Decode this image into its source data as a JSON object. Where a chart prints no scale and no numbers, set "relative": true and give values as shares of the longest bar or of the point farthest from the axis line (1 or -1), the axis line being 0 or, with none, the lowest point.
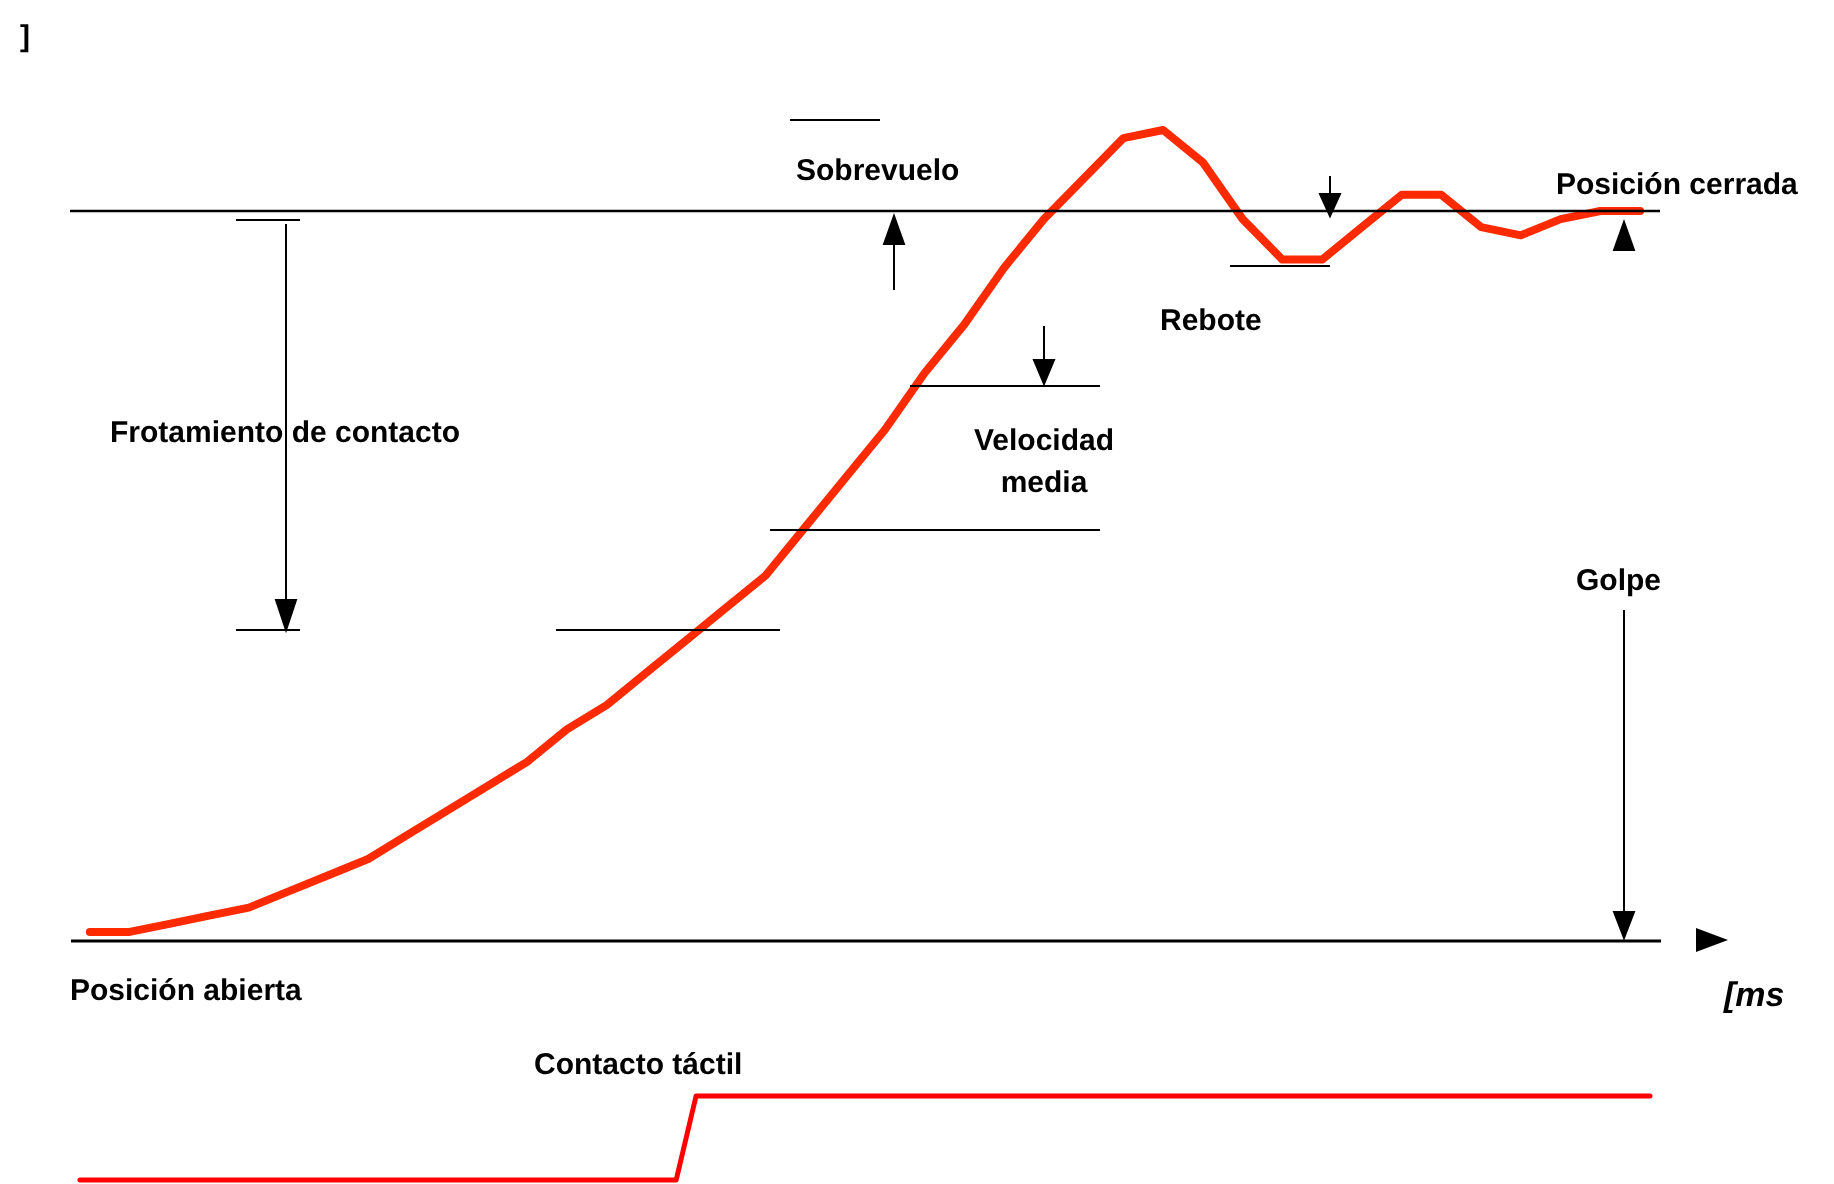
{
  "chart_data": [
    {
      "type": "line",
      "relative": true,
      "xlabel": "[ms",
      "ylabel": "]",
      "categories": [
        null,
        null,
        null,
        null,
        null,
        null,
        null,
        null,
        null,
        null,
        null,
        null,
        null,
        null,
        null,
        null,
        null,
        null,
        null,
        null,
        null,
        null,
        null,
        null,
        null,
        null,
        null,
        null,
        null,
        null,
        null,
        null,
        null,
        null,
        null,
        null,
        null,
        null,
        null,
        null
      ],
      "series": [
        {
          "color": "#ff2a00",
          "values": [
            0.01,
            0.01,
            0.02,
            0.03,
            0.04,
            0.06,
            0.08,
            0.1,
            0.13,
            0.16,
            0.19,
            0.22,
            0.26,
            0.29,
            0.33,
            0.37,
            0.41,
            0.45,
            0.51,
            0.57,
            0.63,
            0.7,
            0.76,
            0.83,
            0.89,
            0.94,
            0.99,
            1,
            0.96,
            0.89,
            0.84,
            0.84,
            0.88,
            0.92,
            0.92,
            0.88,
            0.87,
            0.89,
            0.9,
            0.9
          ]
        }
      ],
      "ref_lines": [
        {
          "axis": "y",
          "value": 0.9,
          "label": "Posición cerrada"
        }
      ],
      "annotations": [
        "Sobrevuelo",
        "Rebote",
        "Velocidad media",
        "Frotamiento de contacto",
        "Golpe",
        "Posición abierta"
      ]
    },
    {
      "type": "line",
      "relative": true,
      "categories": [
        null,
        null,
        null,
        null,
        null,
        null,
        null,
        null,
        null,
        null,
        null,
        null,
        null,
        null,
        null,
        null,
        null,
        null,
        null,
        null,
        null,
        null,
        null,
        null,
        null,
        null,
        null,
        null,
        null,
        null,
        null,
        null,
        null,
        null,
        null,
        null,
        null,
        null,
        null,
        null,
        null,
        null,
        null,
        null,
        null,
        null,
        null,
        null,
        null,
        null,
        null,
        null,
        null,
        null,
        null,
        null,
        null,
        null,
        null,
        null,
        null,
        null,
        null,
        null,
        null,
        null,
        null,
        null,
        null,
        null,
        null,
        null,
        null,
        null,
        null,
        null,
        null,
        null,
        null,
        null
      ],
      "series": [
        {
          "color": "#ff0000",
          "values": [
            0,
            0,
            0,
            0,
            0,
            0,
            0,
            0,
            0,
            0,
            0,
            0,
            0,
            0,
            0,
            0,
            0,
            0,
            0,
            0,
            0,
            0,
            0,
            0,
            0,
            0,
            0,
            0,
            0,
            0,
            0,
            1,
            1,
            1,
            1,
            1,
            1,
            1,
            1,
            1,
            1,
            1,
            1,
            1,
            1,
            1,
            1,
            1,
            1,
            1,
            1,
            1,
            1,
            1,
            1,
            1,
            1,
            1,
            1,
            1,
            1,
            1,
            1,
            1,
            1,
            1,
            1,
            1,
            1,
            1,
            1,
            1,
            1,
            1,
            1,
            1,
            1,
            1,
            1,
            1
          ]
        }
      ],
      "annotations": [
        "Contacto táctil"
      ]
    }
  ]
}
